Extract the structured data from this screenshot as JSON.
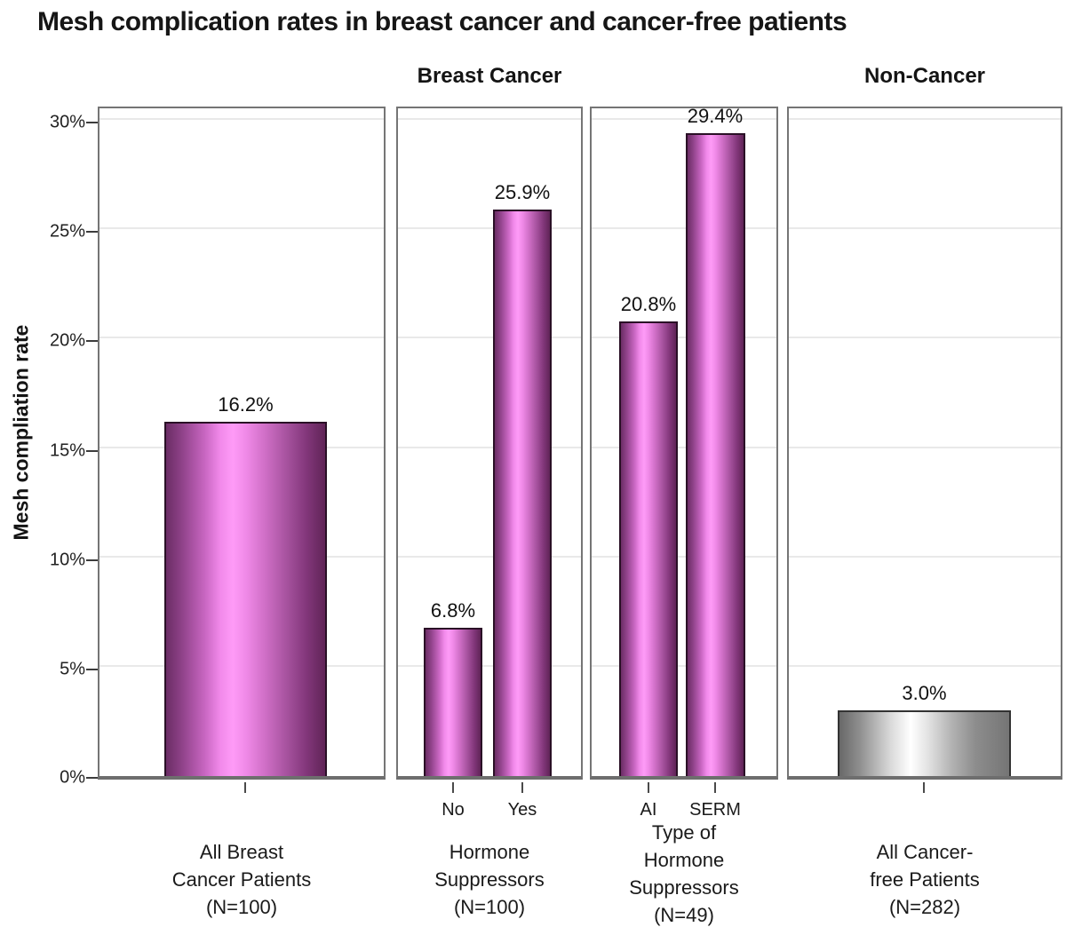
{
  "title": "Mesh complication rates in breast cancer and cancer-free patients",
  "group_headers": {
    "breast_cancer": "Breast Cancer",
    "non_cancer": "Non-Cancer"
  },
  "chart_data": {
    "type": "bar",
    "title": "Mesh complication rates in breast cancer and cancer-free patients",
    "ylabel": "Mesh compliation rate",
    "ylim": [
      0,
      30
    ],
    "grid": "horizontal-5pct-steps",
    "legend": "none",
    "yticks": [
      {
        "value": 30,
        "label": "30%"
      },
      {
        "value": 25,
        "label": "25%"
      },
      {
        "value": 20,
        "label": "20%"
      },
      {
        "value": 15,
        "label": "15%"
      },
      {
        "value": 10,
        "label": "10%"
      },
      {
        "value": 5,
        "label": "5%"
      },
      {
        "value": 0,
        "label": "0%"
      }
    ],
    "bar_style": {
      "cancer_color": "#fe9bf7",
      "cancer_edge": "#602457",
      "non_cancer_color": "#ffffff",
      "non_cancer_edge": "#757575",
      "effect": "cylinder-gradient"
    },
    "panels": [
      {
        "group_header": "Breast Cancer",
        "label_lines": [
          "All Breast",
          "Cancer Patients",
          "(N=100)"
        ],
        "bars": [
          {
            "category": "",
            "value": 16.2,
            "label": "16.2%",
            "color": "magenta"
          }
        ]
      },
      {
        "group_header": "Breast Cancer",
        "label_lines": [
          "Hormone",
          "Suppressors",
          "(N=100)"
        ],
        "bars": [
          {
            "category": "No",
            "value": 6.8,
            "label": "6.8%",
            "color": "magenta"
          },
          {
            "category": "Yes",
            "value": 25.9,
            "label": "25.9%",
            "color": "magenta"
          }
        ]
      },
      {
        "group_header": "Breast Cancer",
        "label_lines": [
          "Type of",
          "Hormone",
          "Suppressors",
          "(N=49)"
        ],
        "bars": [
          {
            "category": "AI",
            "value": 20.8,
            "label": "20.8%",
            "color": "magenta"
          },
          {
            "category": "SERM",
            "value": 29.4,
            "label": "29.4%",
            "color": "magenta"
          }
        ]
      },
      {
        "group_header": "Non-Cancer",
        "label_lines": [
          "All Cancer-",
          "free Patients",
          "(N=282)"
        ],
        "bars": [
          {
            "category": "",
            "value": 3.0,
            "label": "3.0%",
            "color": "silver"
          }
        ]
      }
    ]
  }
}
